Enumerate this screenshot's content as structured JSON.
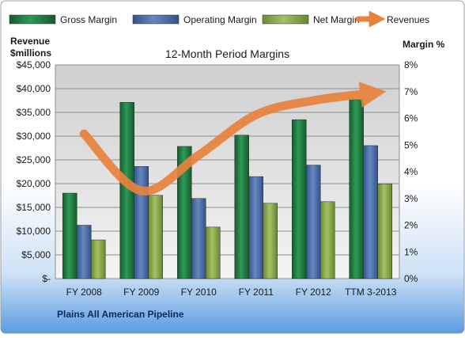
{
  "chart_data": {
    "type": "bar",
    "title": "12-Month Period Margins",
    "subtitle": "Plains All American Pipeline",
    "categories": [
      "FY 2008",
      "FY 2009",
      "FY 2010",
      "FY 2011",
      "FY 2012",
      "TTM 3-2013"
    ],
    "y_left": {
      "label_line1": "Revenue",
      "label_line2": "$millions",
      "min": 0,
      "max": 45000,
      "ticks": [
        "$-",
        "$5,000",
        "$10,000",
        "$15,000",
        "$20,000",
        "$25,000",
        "$30,000",
        "$35,000",
        "$40,000",
        "$45,000"
      ]
    },
    "y_right": {
      "label": "Margin %",
      "min": 0,
      "max": 8,
      "ticks": [
        "0%",
        "1%",
        "2%",
        "3%",
        "4%",
        "5%",
        "6%",
        "7%",
        "8%"
      ]
    },
    "series": [
      {
        "name": "Gross Margin",
        "axis": "right",
        "kind": "bar",
        "color": "#1e7a40",
        "values": [
          3.2,
          6.6,
          4.95,
          5.37,
          5.95,
          6.7
        ]
      },
      {
        "name": "Operating Margin",
        "axis": "right",
        "kind": "bar",
        "color": "#4b6ea6",
        "values": [
          2.0,
          4.2,
          3.0,
          3.82,
          4.25,
          4.98
        ]
      },
      {
        "name": "Net Margin",
        "axis": "right",
        "kind": "bar",
        "color": "#86a84a",
        "values": [
          1.45,
          3.12,
          1.93,
          2.82,
          2.88,
          3.55
        ]
      },
      {
        "name": "Revenues",
        "axis": "left",
        "kind": "line",
        "color": "#e8823c",
        "values": [
          30500,
          18500,
          26000,
          34500,
          37500,
          39000
        ]
      }
    ]
  }
}
